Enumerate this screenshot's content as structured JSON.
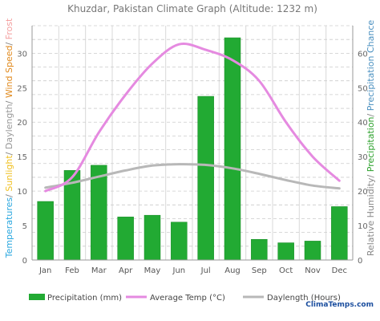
{
  "chart_data": {
    "type": "bar",
    "title": "Khuzdar, Pakistan Climate Graph (Altitude: 1232 m)",
    "categories": [
      "Jan",
      "Feb",
      "Mar",
      "Apr",
      "May",
      "Jun",
      "Jul",
      "Aug",
      "Sep",
      "Oct",
      "Nov",
      "Dec"
    ],
    "left_axis": {
      "ylim": [
        0,
        34
      ],
      "ticks": [
        0,
        5,
        10,
        15,
        20,
        25,
        30
      ]
    },
    "right_axis": {
      "ylim": [
        0,
        68
      ],
      "ticks": [
        0,
        10,
        20,
        30,
        40,
        50,
        60
      ]
    },
    "left_label_parts": [
      {
        "text": "Temperatures",
        "color": "#2aa7df"
      },
      {
        "text": "/ ",
        "color": "#888888"
      },
      {
        "text": "Sunlight",
        "color": "#f0c020"
      },
      {
        "text": "/ ",
        "color": "#888888"
      },
      {
        "text": "Daylength",
        "color": "#999999"
      },
      {
        "text": "/ ",
        "color": "#888888"
      },
      {
        "text": "Wind Speed",
        "color": "#e08a1e"
      },
      {
        "text": "/ ",
        "color": "#888888"
      },
      {
        "text": "Frost",
        "color": "#f4a0a0"
      }
    ],
    "right_label_parts": [
      {
        "text": "Relative Humidity",
        "color": "#888888"
      },
      {
        "text": "/ ",
        "color": "#888888"
      },
      {
        "text": "Precipitation",
        "color": "#2aa02a"
      },
      {
        "text": "/ ",
        "color": "#888888"
      },
      {
        "text": "Precipitation Chance",
        "color": "#4a90c0"
      }
    ],
    "series": [
      {
        "name": "Precipitation (mm)",
        "type": "bar",
        "axis": "right",
        "color": "#22aa33",
        "values": [
          17,
          26,
          27.5,
          12.5,
          13,
          11,
          47.5,
          64.5,
          6,
          5,
          5.5,
          15.5
        ]
      },
      {
        "name": "Average Temp (°C)",
        "type": "line",
        "axis": "left",
        "color": "#e58ae0",
        "values": [
          10,
          12,
          18.5,
          24,
          28.5,
          31.3,
          30.5,
          29,
          26,
          20,
          15,
          11.5
        ]
      },
      {
        "name": "Daylength (Hours)",
        "type": "line",
        "axis": "left",
        "color": "#b8b8b8",
        "values": [
          10.5,
          11.2,
          12.1,
          13.0,
          13.7,
          13.9,
          13.8,
          13.3,
          12.5,
          11.6,
          10.8,
          10.4
        ]
      }
    ],
    "grid": true,
    "legend_position": "bottom"
  },
  "watermark": "ClimaTemps.com"
}
